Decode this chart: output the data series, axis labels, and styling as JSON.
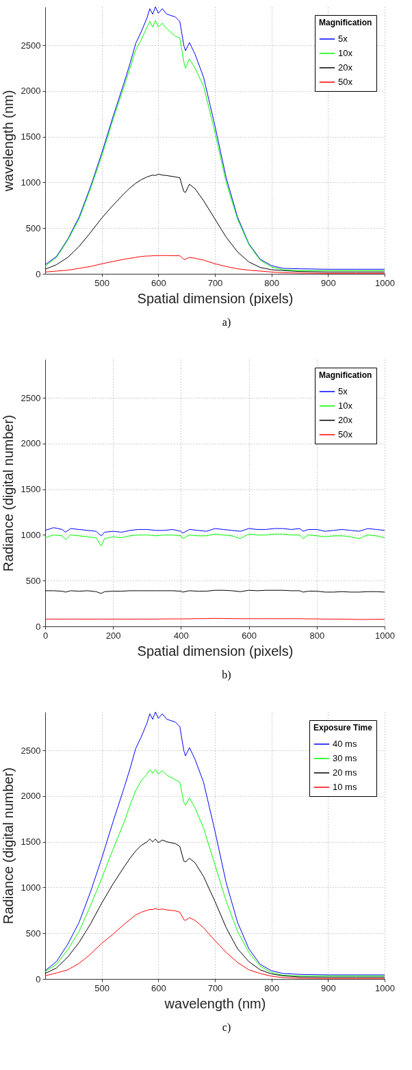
{
  "chart_data": [
    {
      "type": "line",
      "xlabel": "Spatial dimension (pixels)",
      "ylabel": "wavelength (nm)",
      "legend_title": "Magnification",
      "legend": "top right",
      "grid": true,
      "xlim": [
        400,
        1000
      ],
      "ylim": [
        0,
        2920
      ],
      "xticks": [
        500,
        600,
        700,
        800,
        900,
        1000
      ],
      "yticks": [
        0,
        500,
        1000,
        1500,
        2000,
        2500
      ],
      "annotations": [
        "a)"
      ],
      "x": [
        400,
        420,
        440,
        460,
        480,
        500,
        520,
        540,
        550,
        560,
        570,
        580,
        585,
        590,
        595,
        600,
        607,
        615,
        630,
        638,
        645,
        648,
        655,
        665,
        680,
        700,
        720,
        740,
        760,
        780,
        800,
        820,
        850,
        900,
        950,
        1000
      ],
      "series": [
        {
          "name": "5x",
          "color": "#0000ff",
          "values": [
            100,
            190,
            380,
            620,
            950,
            1320,
            1720,
            2100,
            2300,
            2520,
            2650,
            2800,
            2900,
            2840,
            2920,
            2850,
            2900,
            2840,
            2810,
            2760,
            2500,
            2440,
            2530,
            2400,
            2150,
            1620,
            1050,
            620,
            330,
            160,
            90,
            60,
            55,
            50,
            50,
            50
          ]
        },
        {
          "name": "10x",
          "color": "#00ff00",
          "values": [
            85,
            180,
            370,
            600,
            930,
            1290,
            1690,
            2060,
            2250,
            2450,
            2560,
            2700,
            2760,
            2700,
            2770,
            2700,
            2740,
            2680,
            2600,
            2580,
            2320,
            2250,
            2350,
            2250,
            2050,
            1550,
            1000,
            600,
            320,
            150,
            75,
            45,
            35,
            35,
            35,
            35
          ]
        },
        {
          "name": "20x",
          "color": "#000000",
          "values": [
            50,
            100,
            180,
            300,
            450,
            610,
            750,
            880,
            940,
            990,
            1030,
            1060,
            1070,
            1080,
            1075,
            1090,
            1080,
            1075,
            1060,
            1050,
            900,
            890,
            980,
            930,
            800,
            600,
            400,
            240,
            130,
            70,
            45,
            35,
            25,
            20,
            20,
            20
          ]
        },
        {
          "name": "50x",
          "color": "#ff0000",
          "values": [
            20,
            30,
            40,
            60,
            80,
            110,
            135,
            160,
            170,
            180,
            190,
            195,
            195,
            198,
            198,
            200,
            200,
            200,
            198,
            198,
            160,
            160,
            180,
            170,
            150,
            110,
            80,
            55,
            40,
            30,
            20,
            12,
            8,
            5,
            5,
            5
          ]
        }
      ]
    },
    {
      "type": "line",
      "xlabel": "Spatial dimension (pixels)",
      "ylabel": "Radiance (digital number)",
      "legend_title": "Magnification",
      "legend": "top right",
      "grid": true,
      "xlim": [
        0,
        1000
      ],
      "ylim": [
        0,
        2920
      ],
      "xticks": [
        0,
        200,
        400,
        600,
        800,
        1000
      ],
      "yticks": [
        0,
        500,
        1000,
        1500,
        2000,
        2500
      ],
      "annotations": [
        "b)"
      ],
      "x": [
        0,
        25,
        50,
        60,
        75,
        100,
        125,
        150,
        165,
        175,
        200,
        225,
        250,
        275,
        300,
        325,
        350,
        375,
        400,
        405,
        425,
        450,
        475,
        500,
        525,
        550,
        575,
        600,
        625,
        650,
        675,
        700,
        725,
        750,
        760,
        775,
        800,
        825,
        850,
        875,
        900,
        925,
        950,
        975,
        1000
      ],
      "series": [
        {
          "name": "5x",
          "color": "#0000ff",
          "values": [
            1050,
            1080,
            1060,
            1030,
            1070,
            1060,
            1050,
            1040,
            990,
            1030,
            1040,
            1030,
            1050,
            1060,
            1060,
            1050,
            1050,
            1060,
            1040,
            1020,
            1060,
            1050,
            1040,
            1070,
            1060,
            1050,
            1040,
            1070,
            1060,
            1060,
            1070,
            1070,
            1060,
            1070,
            1040,
            1060,
            1060,
            1040,
            1050,
            1060,
            1050,
            1040,
            1070,
            1060,
            1050
          ]
        },
        {
          "name": "10x",
          "color": "#00ff00",
          "values": [
            970,
            1000,
            990,
            950,
            1000,
            990,
            980,
            970,
            880,
            960,
            980,
            970,
            990,
            1000,
            1000,
            990,
            1000,
            1000,
            990,
            960,
            1000,
            990,
            990,
            1010,
            1000,
            990,
            960,
            1010,
            1000,
            1000,
            1010,
            1010,
            1000,
            1000,
            960,
            1000,
            990,
            980,
            990,
            990,
            980,
            960,
            1000,
            990,
            970
          ]
        },
        {
          "name": "20x",
          "color": "#000000",
          "values": [
            390,
            390,
            385,
            375,
            390,
            385,
            390,
            380,
            360,
            380,
            385,
            385,
            390,
            390,
            390,
            390,
            390,
            390,
            385,
            375,
            390,
            385,
            385,
            395,
            395,
            390,
            380,
            395,
            390,
            395,
            395,
            395,
            390,
            390,
            375,
            385,
            385,
            375,
            375,
            380,
            375,
            375,
            380,
            380,
            375
          ]
        },
        {
          "name": "50x",
          "color": "#ff0000",
          "values": [
            80,
            80,
            80,
            80,
            80,
            80,
            80,
            80,
            80,
            80,
            80,
            80,
            80,
            80,
            80,
            80,
            82,
            82,
            82,
            82,
            83,
            85,
            85,
            88,
            86,
            85,
            84,
            84,
            84,
            84,
            84,
            84,
            84,
            84,
            83,
            82,
            82,
            80,
            80,
            80,
            78,
            75,
            76,
            78,
            78
          ]
        }
      ]
    },
    {
      "type": "line",
      "xlabel": "wavelength (nm)",
      "ylabel": "Radiance (digital number)",
      "legend_title": "Exposure Time",
      "legend": "top right",
      "grid": true,
      "xlim": [
        400,
        1000
      ],
      "ylim": [
        0,
        2920
      ],
      "xticks": [
        500,
        600,
        700,
        800,
        900,
        1000
      ],
      "yticks": [
        0,
        500,
        1000,
        1500,
        2000,
        2500
      ],
      "annotations": [
        "c)"
      ],
      "x": [
        400,
        420,
        440,
        460,
        480,
        500,
        520,
        540,
        550,
        560,
        570,
        580,
        585,
        590,
        595,
        600,
        607,
        615,
        630,
        638,
        645,
        648,
        655,
        665,
        680,
        700,
        720,
        740,
        760,
        780,
        800,
        820,
        850,
        900,
        950,
        1000
      ],
      "series": [
        {
          "name": "40 ms",
          "color": "#0000ff",
          "values": [
            90,
            190,
            380,
            620,
            950,
            1320,
            1720,
            2100,
            2300,
            2520,
            2650,
            2800,
            2900,
            2840,
            2920,
            2850,
            2900,
            2840,
            2810,
            2760,
            2500,
            2440,
            2530,
            2400,
            2150,
            1620,
            1050,
            620,
            330,
            160,
            90,
            60,
            50,
            45,
            45,
            45
          ]
        },
        {
          "name": "30 ms",
          "color": "#00ff00",
          "values": [
            80,
            160,
            320,
            520,
            800,
            1100,
            1420,
            1720,
            1900,
            2060,
            2170,
            2240,
            2290,
            2250,
            2290,
            2240,
            2280,
            2230,
            2180,
            2150,
            1930,
            1900,
            1980,
            1870,
            1650,
            1250,
            850,
            520,
            290,
            140,
            70,
            40,
            32,
            32,
            32,
            32
          ]
        },
        {
          "name": "20 ms",
          "color": "#000000",
          "values": [
            60,
            120,
            240,
            400,
            600,
            830,
            1040,
            1230,
            1320,
            1400,
            1460,
            1500,
            1530,
            1500,
            1530,
            1490,
            1520,
            1500,
            1480,
            1450,
            1290,
            1280,
            1320,
            1270,
            1120,
            850,
            560,
            330,
            190,
            100,
            55,
            35,
            22,
            20,
            20,
            20
          ]
        },
        {
          "name": "10 ms",
          "color": "#ff0000",
          "values": [
            35,
            65,
            100,
            170,
            270,
            390,
            490,
            600,
            650,
            700,
            730,
            750,
            760,
            760,
            770,
            760,
            765,
            755,
            745,
            730,
            650,
            640,
            670,
            640,
            560,
            420,
            290,
            180,
            100,
            60,
            30,
            15,
            8,
            5,
            5,
            5
          ]
        }
      ]
    }
  ]
}
